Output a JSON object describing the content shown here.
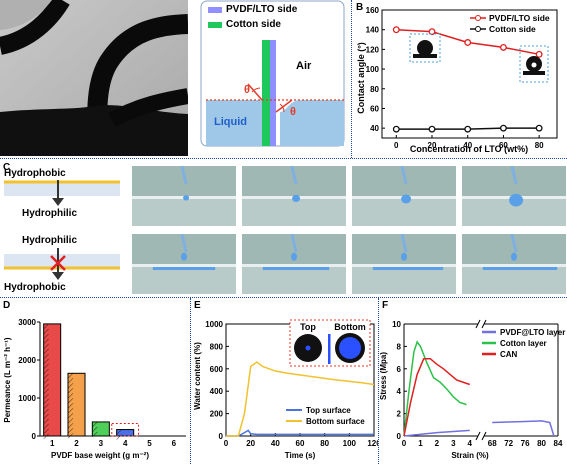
{
  "panels": {
    "A": "A",
    "B": "B",
    "C": "C",
    "D": "D",
    "E": "E",
    "F": "F"
  },
  "schematic": {
    "legend_pvdf": "PVDF/LTO side",
    "legend_cotton": "Cotton side",
    "air": "Air",
    "liquid": "Liquid",
    "theta1": "θ",
    "theta2": "θ",
    "colors": {
      "pvdf": "#8f8fff",
      "cotton": "#1ec85a",
      "liquid": "#9fc8e8",
      "contact": "#e23b2a"
    }
  },
  "panel_c": {
    "row1_top": "Hydrophobic",
    "row1_bottom": "Hydrophilic",
    "row2_top": "Hydrophilic",
    "row2_bottom": "Hydrophobic",
    "photo_color": "#9fb8b4"
  },
  "chart_data": [
    {
      "type": "line",
      "panel": "B",
      "xlabel": "Concentration of LTO (wt%)",
      "ylabel": "Contact angle (°)",
      "xlim": [
        -8,
        90
      ],
      "ylim": [
        30,
        160
      ],
      "xticks": [
        0,
        20,
        40,
        60,
        80
      ],
      "yticks": [
        40,
        60,
        80,
        100,
        120,
        140,
        160
      ],
      "legend": "top-right",
      "series": [
        {
          "name": "PVDF/LTO side",
          "color": "#e02020",
          "marker": "circle-open",
          "x": [
            0,
            20,
            40,
            60,
            80
          ],
          "y": [
            140,
            138,
            127,
            122,
            115
          ]
        },
        {
          "name": "Cotton side",
          "color": "#111111",
          "marker": "circle-open",
          "x": [
            0,
            20,
            40,
            60,
            80
          ],
          "y": [
            39,
            39,
            39,
            40,
            40
          ]
        }
      ]
    },
    {
      "type": "bar",
      "panel": "D",
      "xlabel": "PVDF base weight  (g m⁻²)",
      "ylabel": "Permeance (L m⁻² h⁻¹)",
      "ylim": [
        0,
        3000
      ],
      "yticks": [
        0,
        1000,
        2000,
        3000
      ],
      "categories": [
        "1",
        "2",
        "3",
        "4",
        "5",
        "6"
      ],
      "values": [
        2950,
        1650,
        370,
        170,
        0,
        0
      ],
      "colors": [
        "#e84a4a",
        "#f5a04a",
        "#4ecf5a",
        "#4a70e8",
        "#ffffff",
        "#ffffff"
      ]
    },
    {
      "type": "line",
      "panel": "E",
      "xlabel": "Time (s)",
      "ylabel": "Water content (%)",
      "xlim": [
        0,
        120
      ],
      "ylim": [
        0,
        1000
      ],
      "xticks": [
        0,
        20,
        40,
        60,
        80,
        100,
        120
      ],
      "yticks": [
        0,
        200,
        400,
        600,
        800,
        1000
      ],
      "inset_top": "Top",
      "inset_bottom": "Bottom",
      "series": [
        {
          "name": "Top surface",
          "color": "#4a74e0",
          "x": [
            0,
            10,
            15,
            18,
            20,
            25,
            40,
            60,
            80,
            100,
            120
          ],
          "y": [
            0,
            0,
            30,
            50,
            20,
            15,
            15,
            15,
            15,
            15,
            15
          ]
        },
        {
          "name": "Bottom surface",
          "color": "#f2c22e",
          "x": [
            0,
            10,
            15,
            20,
            25,
            30,
            40,
            50,
            60,
            70,
            80,
            90,
            100,
            110,
            120
          ],
          "y": [
            0,
            0,
            200,
            620,
            660,
            620,
            580,
            560,
            545,
            530,
            515,
            500,
            488,
            475,
            460
          ]
        }
      ]
    },
    {
      "type": "line",
      "panel": "F",
      "xlabel": "Strain (%)",
      "ylabel": "Stress (Mpa)",
      "ylim": [
        0,
        10
      ],
      "yticks": [
        0,
        2,
        4,
        6,
        8,
        10
      ],
      "xticks_left": [
        0,
        1,
        2,
        3,
        4
      ],
      "xticks_right": [
        68,
        72,
        76,
        80,
        84
      ],
      "series": [
        {
          "name": "PVDF@LTO layer",
          "color": "#7070e0",
          "x": [
            0,
            2,
            4,
            68,
            72,
            76,
            80,
            82,
            83
          ],
          "y": [
            0,
            0.3,
            0.5,
            1.2,
            1.25,
            1.3,
            1.35,
            1.2,
            0
          ]
        },
        {
          "name": "Cotton layer",
          "color": "#2cc24a",
          "x": [
            0,
            0.3,
            0.6,
            0.8,
            1.0,
            1.4,
            1.8,
            2.2,
            2.6,
            3.0,
            3.4,
            3.8
          ],
          "y": [
            0,
            4,
            7.5,
            8.4,
            8.0,
            6.5,
            5.2,
            4.8,
            4.2,
            3.5,
            3.0,
            2.8
          ]
        },
        {
          "name": "CAN",
          "color": "#e02020",
          "x": [
            0,
            0.4,
            0.8,
            1.2,
            1.6,
            2.0,
            2.4,
            2.8,
            3.2,
            3.6,
            4.0
          ],
          "y": [
            0,
            3,
            5.5,
            6.9,
            6.9,
            6.4,
            6.0,
            5.5,
            5.0,
            4.8,
            4.6
          ]
        }
      ]
    }
  ]
}
